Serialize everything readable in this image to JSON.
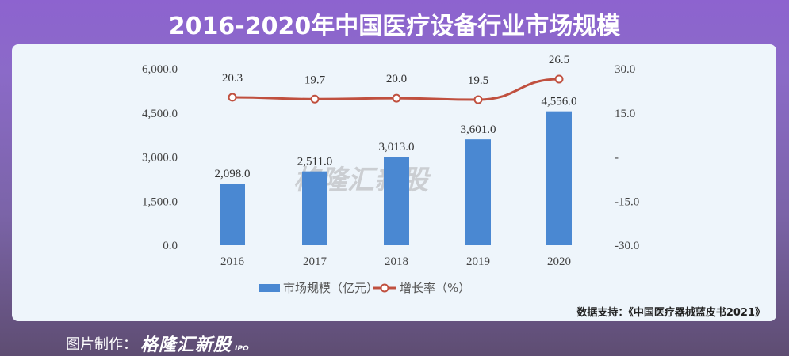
{
  "title": "2016-2020年中国医疗设备行业市场规模",
  "chart_data": {
    "type": "bar+line",
    "categories": [
      "2016",
      "2017",
      "2018",
      "2019",
      "2020"
    ],
    "series": [
      {
        "name": "市场规模（亿元）",
        "type": "bar",
        "axis": "left",
        "color": "#4a88d2",
        "values": [
          2098.0,
          2511.0,
          3013.0,
          3601.0,
          4556.0
        ],
        "labels": [
          "2,098.0",
          "2,511.0",
          "3,013.0",
          "3,601.0",
          "4,556.0"
        ]
      },
      {
        "name": "增长率（%）",
        "type": "line",
        "axis": "right",
        "color": "#c0503f",
        "values": [
          20.3,
          19.7,
          20.0,
          19.5,
          26.5
        ],
        "labels": [
          "20.3",
          "19.7",
          "20.0",
          "19.5",
          "26.5"
        ]
      }
    ],
    "left_axis": {
      "ylim": [
        0,
        6000
      ],
      "ticks": [
        0,
        1500,
        3000,
        4500,
        6000
      ],
      "tick_labels": [
        "0.0",
        "1,500.0",
        "3,000.0",
        "4,500.0",
        "6,000.0"
      ]
    },
    "right_axis": {
      "ylim": [
        -30,
        30
      ],
      "ticks": [
        -30,
        -15,
        0,
        15,
        30
      ],
      "tick_labels": [
        "-30.0",
        "-15.0",
        "-",
        "15.0",
        "30.0"
      ]
    },
    "grid": false,
    "legend": "bottom"
  },
  "legend": {
    "bar": "市场规模（亿元）",
    "line": "增长率（%）"
  },
  "source": "数据支持：《中国医疗器械蓝皮书2021》",
  "watermark": "格隆汇新股",
  "footer": {
    "label": "图片制作：",
    "logo": "格隆汇新股",
    "ipo": "IPO"
  }
}
